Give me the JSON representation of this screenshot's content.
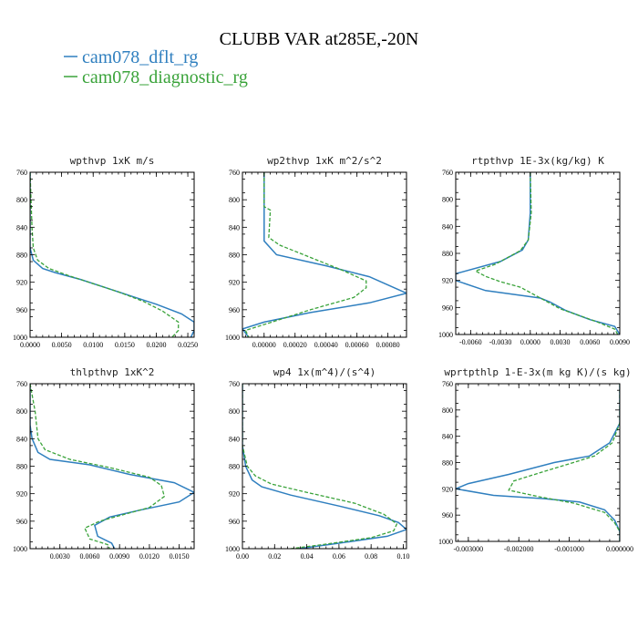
{
  "figure": {
    "title": "CLUBB VAR at285E,-20N",
    "legend": [
      {
        "label": "cam078_dflt_rg",
        "color": "#2f7fbf",
        "dash": "solid"
      },
      {
        "label": "cam078_diagnostic_rg",
        "color": "#3aa33a",
        "dash": "dashed"
      }
    ]
  },
  "chart_data": [
    {
      "type": "line",
      "title": "wpthvp   1xK m/s",
      "xlim": [
        0.0,
        0.026
      ],
      "ylim": [
        760,
        1000
      ],
      "x_ticks": [
        "0.0000",
        "0.0050",
        "0.0100",
        "0.0150",
        "0.0200",
        "0.0250"
      ],
      "x_tick_values": [
        0.0,
        0.005,
        0.01,
        0.015,
        0.02,
        0.025
      ],
      "y_ticks": [
        "760",
        "800",
        "840",
        "880",
        "920",
        "960",
        "1000"
      ],
      "series": [
        {
          "name": "cam078_dflt_rg",
          "points": [
            [
              0.0,
              760
            ],
            [
              0.0,
              840
            ],
            [
              0.0,
              870
            ],
            [
              0.0005,
              888
            ],
            [
              0.002,
              900
            ],
            [
              0.004,
              906
            ],
            [
              0.008,
              916
            ],
            [
              0.012,
              928
            ],
            [
              0.016,
              940
            ],
            [
              0.02,
              952
            ],
            [
              0.024,
              966
            ],
            [
              0.026,
              978
            ],
            [
              0.026,
              990
            ],
            [
              0.0255,
              1000
            ]
          ]
        },
        {
          "name": "cam078_diagnostic_rg",
          "points": [
            [
              0.0,
              760
            ],
            [
              0.0003,
              840
            ],
            [
              0.0005,
              870
            ],
            [
              0.0012,
              888
            ],
            [
              0.003,
              900
            ],
            [
              0.006,
              910
            ],
            [
              0.01,
              922
            ],
            [
              0.014,
              934
            ],
            [
              0.018,
              948
            ],
            [
              0.021,
              962
            ],
            [
              0.0235,
              978
            ],
            [
              0.0235,
              990
            ],
            [
              0.0225,
              1000
            ]
          ]
        }
      ]
    },
    {
      "type": "line",
      "title": "wp2thvp   1xK m^2/s^2",
      "xlim": [
        -0.00014,
        0.00092
      ],
      "ylim": [
        760,
        1000
      ],
      "x_ticks": [
        "0.00000",
        "0.00020",
        "0.00040",
        "0.00060",
        "0.00080"
      ],
      "x_tick_values": [
        0.0,
        0.0002,
        0.0004,
        0.0006,
        0.0008
      ],
      "y_ticks": [
        "760",
        "800",
        "840",
        "880",
        "920",
        "960",
        "1000"
      ],
      "series": [
        {
          "name": "cam078_dflt_rg",
          "points": [
            [
              0.0,
              760
            ],
            [
              0.0,
              800
            ],
            [
              0.0,
              860
            ],
            [
              8e-05,
              880
            ],
            [
              0.0004,
              896
            ],
            [
              0.00068,
              912
            ],
            [
              0.00092,
              936
            ],
            [
              0.00068,
              950
            ],
            [
              0.0003,
              964
            ],
            [
              0.0,
              978
            ],
            [
              -0.00014,
              988
            ],
            [
              -0.0001,
              1000
            ]
          ]
        },
        {
          "name": "cam078_diagnostic_rg",
          "points": [
            [
              0.0,
              760
            ],
            [
              0.0,
              810
            ],
            [
              4e-05,
              815
            ],
            [
              3e-05,
              855
            ],
            [
              0.0001,
              866
            ],
            [
              0.0003,
              884
            ],
            [
              0.0005,
              902
            ],
            [
              0.00066,
              918
            ],
            [
              0.00066,
              928
            ],
            [
              0.00058,
              942
            ],
            [
              0.0003,
              960
            ],
            [
              5e-05,
              978
            ],
            [
              -0.00012,
              990
            ],
            [
              -0.0001,
              1000
            ]
          ]
        }
      ]
    },
    {
      "type": "line",
      "title": "rtpthvp   1E-3x(kg/kg) K",
      "xlim": [
        -0.0075,
        0.009
      ],
      "ylim": [
        760,
        1000
      ],
      "x_ticks": [
        "-0.0060",
        "-0.0030",
        "0.0000",
        "0.0030",
        "0.0060",
        "0.0090"
      ],
      "x_tick_values": [
        -0.006,
        -0.003,
        0.0,
        0.003,
        0.006,
        0.009
      ],
      "y_ticks": [
        "760",
        "800",
        "840",
        "880",
        "920",
        "960",
        "1000"
      ],
      "series": [
        {
          "name": "cam078_dflt_rg",
          "points": [
            [
              0.0,
              760
            ],
            [
              0.0,
              820
            ],
            [
              -0.0002,
              860
            ],
            [
              -0.0008,
              875
            ],
            [
              -0.003,
              892
            ],
            [
              -0.0075,
              910
            ],
            [
              -0.0075,
              920
            ],
            [
              -0.0045,
              935
            ],
            [
              -0.002,
              940
            ],
            [
              0.001,
              946
            ],
            [
              0.002,
              952
            ],
            [
              0.0035,
              964
            ],
            [
              0.006,
              978
            ],
            [
              0.0085,
              988
            ],
            [
              0.009,
              1000
            ]
          ]
        },
        {
          "name": "cam078_diagnostic_rg",
          "points": [
            [
              0.0,
              760
            ],
            [
              0.0001,
              820
            ],
            [
              -0.0002,
              860
            ],
            [
              -0.001,
              876
            ],
            [
              -0.0035,
              896
            ],
            [
              -0.0055,
              906
            ],
            [
              -0.0045,
              914
            ],
            [
              -0.003,
              922
            ],
            [
              -0.001,
              930
            ],
            [
              0.0005,
              942
            ],
            [
              0.003,
              962
            ],
            [
              0.0065,
              980
            ],
            [
              0.0085,
              992
            ],
            [
              0.0088,
              1000
            ]
          ]
        }
      ]
    },
    {
      "type": "line",
      "title": "thlpthvp   1xK^2",
      "xlim": [
        0.0,
        0.0165
      ],
      "ylim": [
        760,
        1000
      ],
      "x_ticks": [
        "0.0030",
        "0.0060",
        "0.0090",
        "0.0120",
        "0.0150"
      ],
      "x_tick_values": [
        0.003,
        0.006,
        0.009,
        0.012,
        0.015
      ],
      "y_ticks": [
        "760",
        "800",
        "840",
        "880",
        "920",
        "960",
        "1000"
      ],
      "series": [
        {
          "name": "cam078_dflt_rg",
          "points": [
            [
              0.0,
              760
            ],
            [
              0.0,
              820
            ],
            [
              0.0002,
              840
            ],
            [
              0.0008,
              860
            ],
            [
              0.002,
              870
            ],
            [
              0.006,
              878
            ],
            [
              0.01,
              892
            ],
            [
              0.0145,
              904
            ],
            [
              0.0165,
              918
            ],
            [
              0.015,
              932
            ],
            [
              0.011,
              944
            ],
            [
              0.008,
              954
            ],
            [
              0.0065,
              966
            ],
            [
              0.0068,
              982
            ],
            [
              0.0082,
              992
            ],
            [
              0.0085,
              1000
            ]
          ]
        },
        {
          "name": "cam078_diagnostic_rg",
          "points": [
            [
              0.0,
              760
            ],
            [
              0.0005,
              800
            ],
            [
              0.0008,
              840
            ],
            [
              0.0015,
              856
            ],
            [
              0.004,
              870
            ],
            [
              0.008,
              882
            ],
            [
              0.012,
              896
            ],
            [
              0.0132,
              908
            ],
            [
              0.0135,
              924
            ],
            [
              0.012,
              940
            ],
            [
              0.009,
              952
            ],
            [
              0.007,
              960
            ],
            [
              0.0055,
              970
            ],
            [
              0.006,
              986
            ],
            [
              0.0078,
              994
            ],
            [
              0.008,
              1000
            ]
          ]
        }
      ]
    },
    {
      "type": "line",
      "title": "wp4   1x(m^4)/(s^4)",
      "xlim": [
        0.0,
        0.102
      ],
      "ylim": [
        760,
        1000
      ],
      "x_ticks": [
        "0.00",
        "0.02",
        "0.04",
        "0.06",
        "0.08",
        "0.10"
      ],
      "x_tick_values": [
        0.0,
        0.02,
        0.04,
        0.06,
        0.08,
        0.1
      ],
      "y_ticks": [
        "760",
        "800",
        "840",
        "880",
        "920",
        "960",
        "1000"
      ],
      "series": [
        {
          "name": "cam078_dflt_rg",
          "points": [
            [
              0.0,
              760
            ],
            [
              0.0,
              850
            ],
            [
              0.002,
              880
            ],
            [
              0.006,
              900
            ],
            [
              0.012,
              910
            ],
            [
              0.03,
              922
            ],
            [
              0.06,
              938
            ],
            [
              0.085,
              952
            ],
            [
              0.097,
              962
            ],
            [
              0.102,
              972
            ],
            [
              0.09,
              982
            ],
            [
              0.06,
              992
            ],
            [
              0.035,
              1000
            ]
          ]
        },
        {
          "name": "cam078_diagnostic_rg",
          "points": [
            [
              0.0,
              760
            ],
            [
              0.0,
              850
            ],
            [
              0.003,
              880
            ],
            [
              0.008,
              894
            ],
            [
              0.018,
              906
            ],
            [
              0.04,
              918
            ],
            [
              0.07,
              934
            ],
            [
              0.088,
              950
            ],
            [
              0.096,
              964
            ],
            [
              0.094,
              974
            ],
            [
              0.08,
              984
            ],
            [
              0.05,
              994
            ],
            [
              0.03,
              1000
            ]
          ]
        }
      ]
    },
    {
      "type": "line",
      "title": "wprtpthlp   1-E-3x(m kg K)/(s kg)",
      "xlim": [
        -0.00325,
        0.0
      ],
      "ylim": [
        760,
        1000
      ],
      "x_ticks": [
        "-0.003000",
        "-0.002000",
        "-0.001000",
        "0.000000"
      ],
      "x_tick_values": [
        -0.003,
        -0.002,
        -0.001,
        0.0
      ],
      "y_ticks": [
        "760",
        "800",
        "840",
        "880",
        "920",
        "960",
        "1000"
      ],
      "series": [
        {
          "name": "cam078_dflt_rg",
          "points": [
            [
              0.0,
              760
            ],
            [
              0.0,
              820
            ],
            [
              -0.0002,
              850
            ],
            [
              -0.0006,
              870
            ],
            [
              -0.0013,
              880
            ],
            [
              -0.0022,
              898
            ],
            [
              -0.003,
              912
            ],
            [
              -0.00325,
              920
            ],
            [
              -0.0025,
              930
            ],
            [
              -0.0015,
              935
            ],
            [
              -0.0008,
              940
            ],
            [
              -0.0003,
              952
            ],
            [
              -0.0001,
              968
            ],
            [
              0.0,
              985
            ],
            [
              0.0,
              1000
            ]
          ]
        },
        {
          "name": "cam078_diagnostic_rg",
          "points": [
            [
              0.0,
              760
            ],
            [
              0.0,
              820
            ],
            [
              -0.00015,
              850
            ],
            [
              -0.0005,
              870
            ],
            [
              -0.001,
              882
            ],
            [
              -0.0016,
              896
            ],
            [
              -0.0021,
              908
            ],
            [
              -0.0022,
              922
            ],
            [
              -0.0016,
              932
            ],
            [
              -0.0009,
              942
            ],
            [
              -0.0003,
              956
            ],
            [
              -0.0001,
              972
            ],
            [
              0.0,
              985
            ],
            [
              0.0,
              1000
            ]
          ]
        }
      ]
    }
  ]
}
